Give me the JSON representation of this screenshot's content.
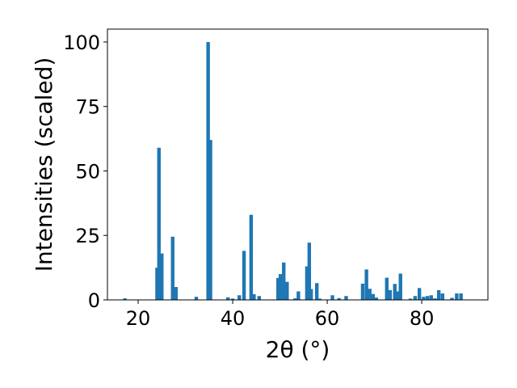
{
  "chart_data": {
    "type": "bar",
    "xlabel": "2θ (°)",
    "ylabel": "Intensities (scaled)",
    "xlim": [
      13.5,
      94.0
    ],
    "ylim": [
      0,
      105
    ],
    "xticks": [
      20,
      40,
      60,
      80
    ],
    "yticks": [
      0,
      25,
      50,
      75,
      100
    ],
    "bar_width_deg": 0.75,
    "color": "#1f77b4",
    "grid": false,
    "legend": "none",
    "x": [
      17.2,
      24.0,
      24.4,
      25.0,
      27.3,
      28.0,
      32.3,
      34.8,
      35.3,
      39.0,
      40.0,
      41.4,
      42.4,
      43.9,
      44.5,
      45.6,
      49.6,
      50.1,
      50.8,
      51.5,
      53.2,
      53.9,
      55.7,
      56.2,
      56.6,
      57.8,
      58.4,
      61.1,
      62.5,
      64.0,
      67.5,
      68.3,
      69.0,
      69.7,
      70.4,
      72.6,
      73.3,
      74.3,
      74.9,
      75.5,
      77.6,
      78.6,
      79.5,
      80.4,
      81.2,
      82.0,
      82.8,
      83.6,
      84.4,
      86.4,
      87.4,
      88.3
    ],
    "values": [
      0.6,
      12.5,
      59.0,
      18.0,
      24.5,
      5.0,
      1.2,
      100,
      62.0,
      1.0,
      0.5,
      1.8,
      19.0,
      33.0,
      2.2,
      1.5,
      8.5,
      10.0,
      14.5,
      7.0,
      0.6,
      3.3,
      13.0,
      22.2,
      4.2,
      6.5,
      0.5,
      1.8,
      0.7,
      1.5,
      6.3,
      11.8,
      4.3,
      2.3,
      0.9,
      8.6,
      3.8,
      6.2,
      3.3,
      10.2,
      0.5,
      1.5,
      4.6,
      1.2,
      1.5,
      1.8,
      0.6,
      3.8,
      2.5,
      0.8,
      2.5,
      2.5
    ]
  }
}
